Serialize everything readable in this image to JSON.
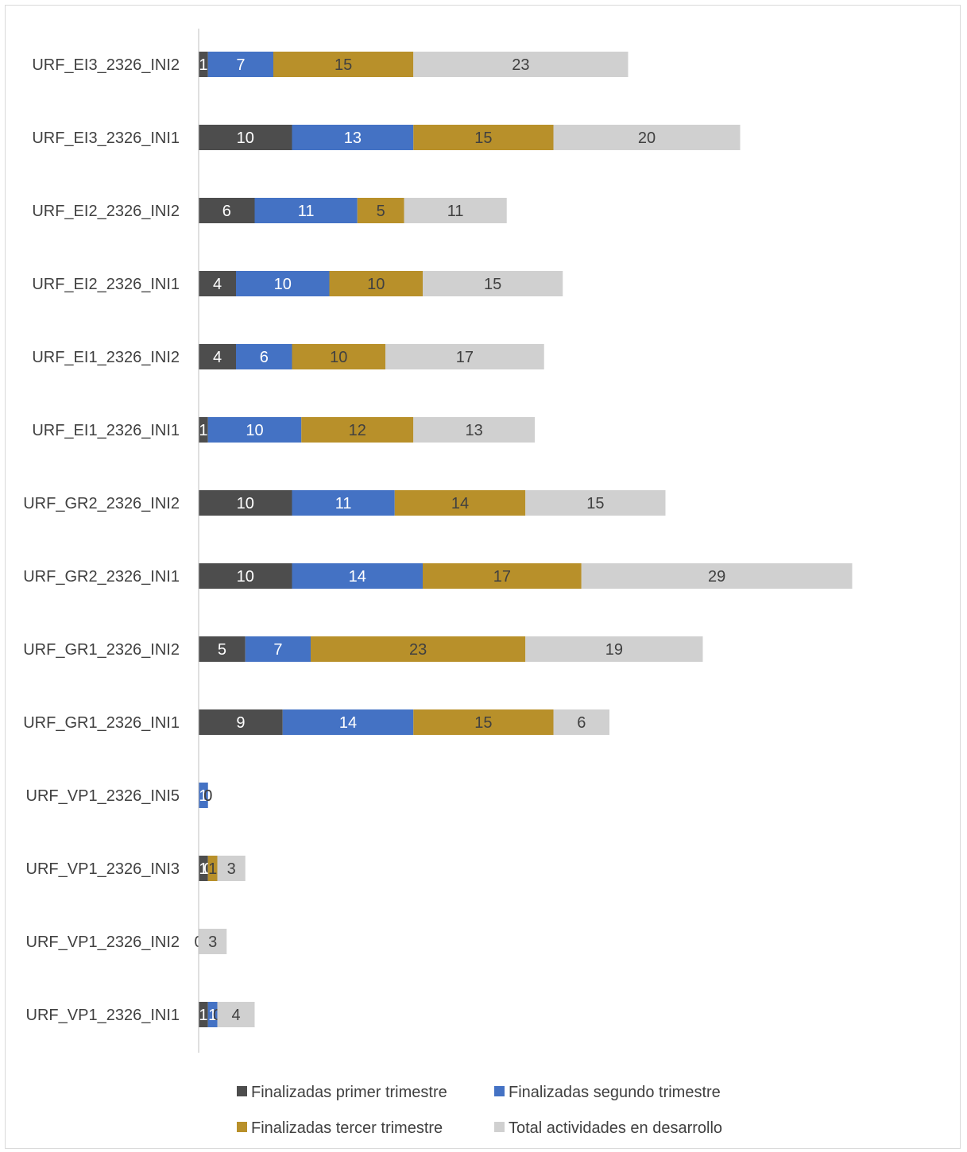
{
  "chart_data": {
    "type": "bar",
    "orientation": "horizontal",
    "stacked": true,
    "title": "",
    "xlabel": "",
    "ylabel": "",
    "grid": false,
    "legend_position": "bottom",
    "categories": [
      "URF_EI3_2326_INI2",
      "URF_EI3_2326_INI1",
      "URF_EI2_2326_INI2",
      "URF_EI2_2326_INI1",
      "URF_EI1_2326_INI2",
      "URF_EI1_2326_INI1",
      "URF_GR2_2326_INI2",
      "URF_GR2_2326_INI1",
      "URF_GR1_2326_INI2",
      "URF_GR1_2326_INI1",
      "URF_VP1_2326_INI5",
      "URF_VP1_2326_INI3",
      "URF_VP1_2326_INI2",
      "URF_VP1_2326_INI1"
    ],
    "series": [
      {
        "name": "Finalizadas primer trimestre",
        "color": "#4d4d4d",
        "label_color": "#ffffff",
        "values": [
          1,
          10,
          6,
          4,
          4,
          1,
          10,
          10,
          5,
          9,
          0,
          1,
          0,
          1
        ]
      },
      {
        "name": "Finalizadas segundo trimestre",
        "color": "#4472c4",
        "label_color": "#ffffff",
        "values": [
          7,
          13,
          11,
          10,
          6,
          10,
          11,
          14,
          7,
          14,
          1,
          0,
          0,
          1
        ]
      },
      {
        "name": "Finalizadas tercer trimestre",
        "color": "#b8902a",
        "label_color": "#404040",
        "values": [
          15,
          15,
          5,
          10,
          10,
          12,
          14,
          17,
          23,
          15,
          0,
          1,
          0,
          0
        ]
      },
      {
        "name": "Total actividades en desarrollo",
        "color": "#d0d0d0",
        "label_color": "#404040",
        "values": [
          23,
          20,
          11,
          15,
          17,
          13,
          15,
          29,
          19,
          6,
          0,
          3,
          3,
          4
        ]
      }
    ]
  }
}
